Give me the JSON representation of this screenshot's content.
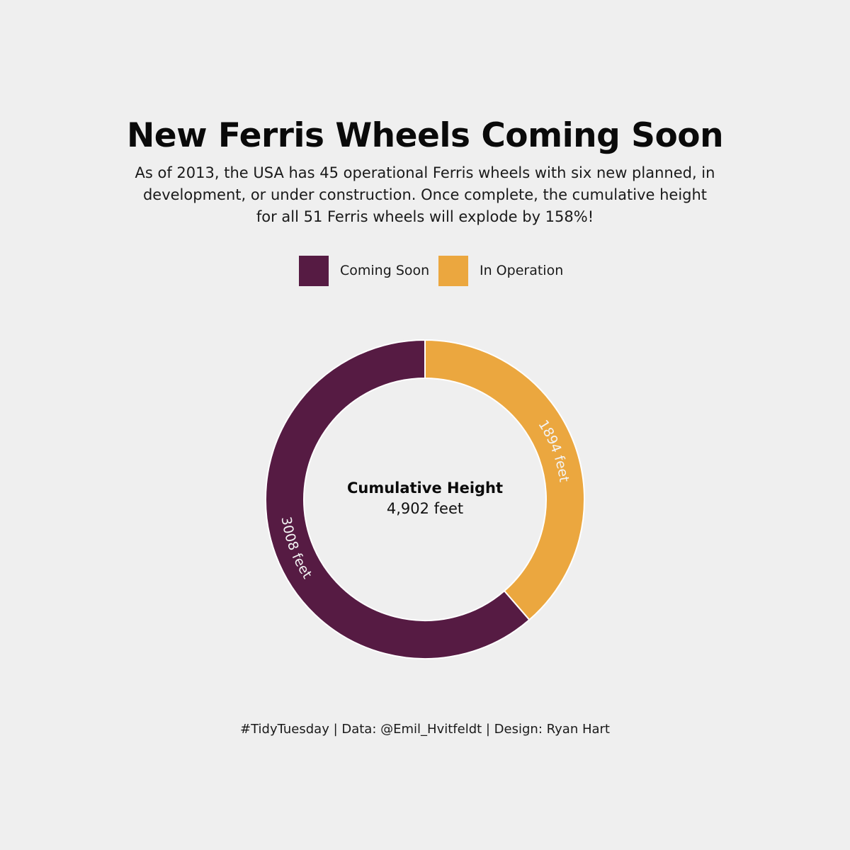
{
  "title": "New Ferris Wheels Coming Soon",
  "subtitle": "As of 2013, the USA has 45 operational Ferris wheels with six new planned, in development, or under construction. Once complete, the cumulative height for all 51 Ferris wheels will explode by 158%!",
  "legend": [
    {
      "label": "Coming Soon",
      "color": "#561b43"
    },
    {
      "label": "In Operation",
      "color": "#eba73f"
    }
  ],
  "center": {
    "heading": "Cumulative Height",
    "value": "4,902 feet"
  },
  "caption": "#TidyTuesday | Data: @Emil_Hvitfeldt | Design: Ryan Hart",
  "chart_data": {
    "type": "pie",
    "variant": "donut",
    "categories": [
      "In Operation",
      "Coming Soon"
    ],
    "values": [
      1894,
      3008
    ],
    "labels": [
      "1894 feet",
      "3008 feet"
    ],
    "colors": [
      "#eba73f",
      "#561b43"
    ],
    "total": 4902,
    "legend_position": "top"
  }
}
